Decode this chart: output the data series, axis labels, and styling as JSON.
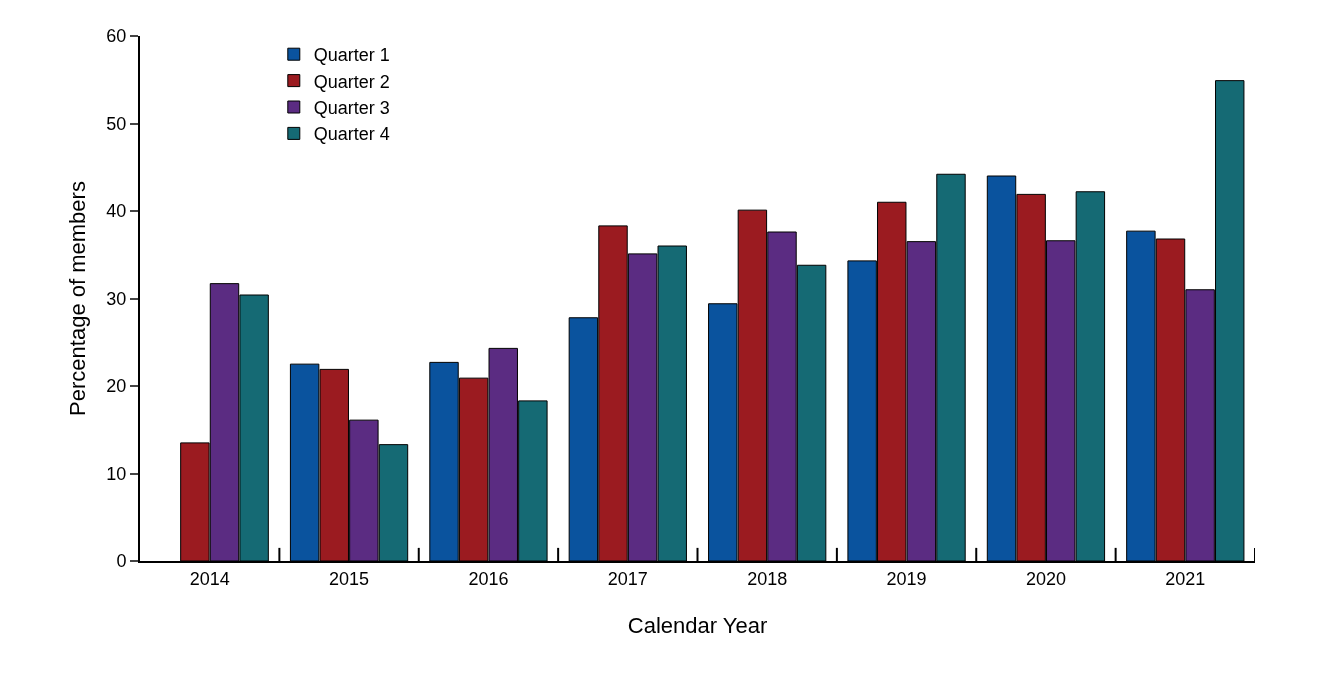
{
  "chart_data": {
    "type": "bar",
    "xlabel": "Calendar Year",
    "ylabel": "Percentage of members",
    "categories": [
      "2014",
      "2015",
      "2016",
      "2017",
      "2018",
      "2019",
      "2020",
      "2021"
    ],
    "series": [
      {
        "name": "Quarter 1",
        "color": "#0a539e",
        "values": [
          null,
          22.5,
          22.7,
          27.8,
          29.4,
          34.3,
          44.0,
          37.7
        ]
      },
      {
        "name": "Quarter 2",
        "color": "#9b1b20",
        "values": [
          13.5,
          21.9,
          20.9,
          38.3,
          40.1,
          41.0,
          41.9,
          36.8
        ]
      },
      {
        "name": "Quarter 3",
        "color": "#5b2c82",
        "values": [
          31.7,
          16.1,
          24.3,
          35.1,
          37.6,
          36.5,
          36.6,
          31.0
        ]
      },
      {
        "name": "Quarter 4",
        "color": "#156a74",
        "values": [
          30.4,
          13.3,
          18.3,
          36.0,
          33.8,
          44.2,
          42.2,
          54.9
        ]
      }
    ],
    "ylim": [
      0,
      60
    ],
    "yticks": [
      0,
      10,
      20,
      30,
      40,
      50,
      60
    ],
    "legend": "top left"
  }
}
